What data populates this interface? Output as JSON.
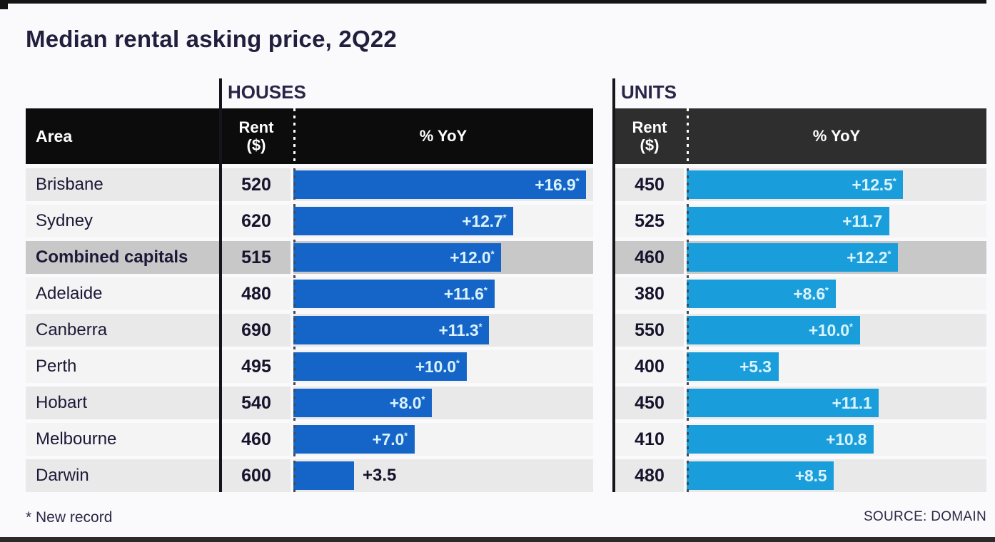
{
  "title": "Median rental asking price, 2Q22",
  "area_header": "Area",
  "sections": [
    {
      "label": "HOUSES",
      "rent_header_line1": "Rent",
      "rent_header_line2": "($)",
      "yoy_header": "% YoY"
    },
    {
      "label": "UNITS",
      "rent_header_line1": "Rent",
      "rent_header_line2": "($)",
      "yoy_header": "% YoY"
    }
  ],
  "footer": {
    "note": "* New record",
    "source": "SOURCE: DOMAIN"
  },
  "colors": {
    "houses_bar": "#1565c8",
    "units_bar": "#1a9edb",
    "bar_label": "#d9f2fb",
    "houses_header_bg": "#0c0c0c",
    "units_header_bg": "#2e2e2e",
    "highlight_row_bg": "#c8c8c8",
    "row_odd_bg": "#e9e9e9",
    "row_even_bg": "#f4f4f4"
  },
  "chart_data": {
    "type": "bar",
    "orientation": "horizontal",
    "title": "Median rental asking price, 2Q22",
    "categories": [
      "Brisbane",
      "Sydney",
      "Combined capitals",
      "Adelaide",
      "Canberra",
      "Perth",
      "Hobart",
      "Melbourne",
      "Darwin"
    ],
    "highlight_category": "Combined capitals",
    "xlim": [
      0,
      17.3
    ],
    "series": [
      {
        "section": "HOUSES",
        "name": "Rent ($)",
        "values": [
          520,
          620,
          515,
          480,
          690,
          495,
          540,
          460,
          600
        ]
      },
      {
        "section": "HOUSES",
        "name": "% YoY",
        "values": [
          16.9,
          12.7,
          12.0,
          11.6,
          11.3,
          10.0,
          8.0,
          7.0,
          3.5
        ],
        "new_record": [
          true,
          true,
          true,
          true,
          true,
          true,
          true,
          true,
          false
        ]
      },
      {
        "section": "UNITS",
        "name": "Rent ($)",
        "values": [
          450,
          525,
          460,
          380,
          550,
          400,
          450,
          410,
          480
        ]
      },
      {
        "section": "UNITS",
        "name": "% YoY",
        "values": [
          12.5,
          11.7,
          12.2,
          8.6,
          10.0,
          5.3,
          11.1,
          10.8,
          8.5
        ],
        "new_record": [
          true,
          false,
          true,
          true,
          true,
          false,
          false,
          false,
          false
        ]
      }
    ],
    "footnote": "* New record",
    "source": "SOURCE: DOMAIN"
  }
}
